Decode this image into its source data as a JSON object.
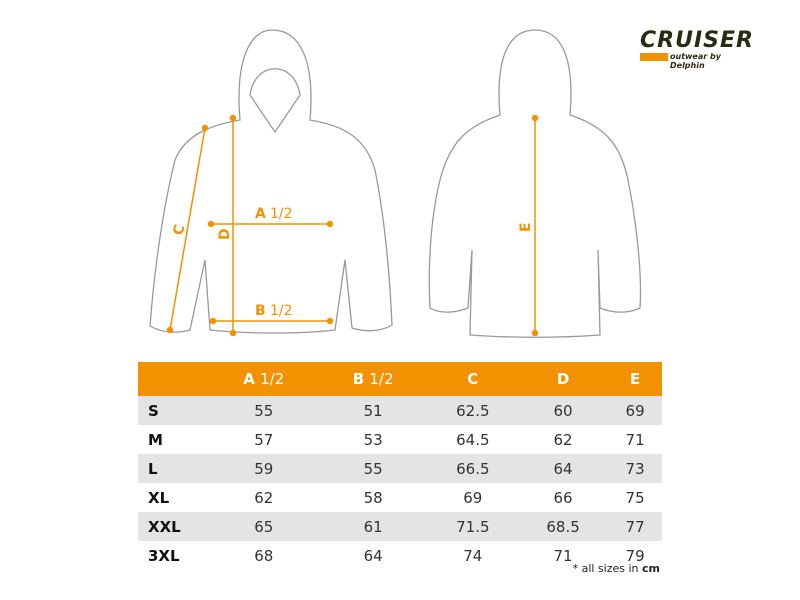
{
  "logo": {
    "brand": "CRUISER",
    "tagline": "outwear by Delphin"
  },
  "colors": {
    "accent": "#f39200",
    "outline": "#999999"
  },
  "diagram_labels": {
    "a": "A",
    "a_frac": "1/2",
    "b": "B",
    "b_frac": "1/2",
    "c": "C",
    "d": "D",
    "e": "E"
  },
  "table": {
    "headers": [
      {
        "letter": "A",
        "frac": "1/2"
      },
      {
        "letter": "B",
        "frac": "1/2"
      },
      {
        "letter": "C",
        "frac": ""
      },
      {
        "letter": "D",
        "frac": ""
      },
      {
        "letter": "E",
        "frac": ""
      }
    ],
    "rows": [
      {
        "size": "S",
        "values": [
          "55",
          "51",
          "62.5",
          "60",
          "69"
        ]
      },
      {
        "size": "M",
        "values": [
          "57",
          "53",
          "64.5",
          "62",
          "71"
        ]
      },
      {
        "size": "L",
        "values": [
          "59",
          "55",
          "66.5",
          "64",
          "73"
        ]
      },
      {
        "size": "XL",
        "values": [
          "62",
          "58",
          "69",
          "66",
          "75"
        ]
      },
      {
        "size": "XXL",
        "values": [
          "65",
          "61",
          "71.5",
          "68.5",
          "77"
        ]
      },
      {
        "size": "3XL",
        "values": [
          "68",
          "64",
          "74",
          "71",
          "79"
        ]
      }
    ]
  },
  "note": {
    "prefix": "* all sizes in ",
    "unit": "cm"
  }
}
